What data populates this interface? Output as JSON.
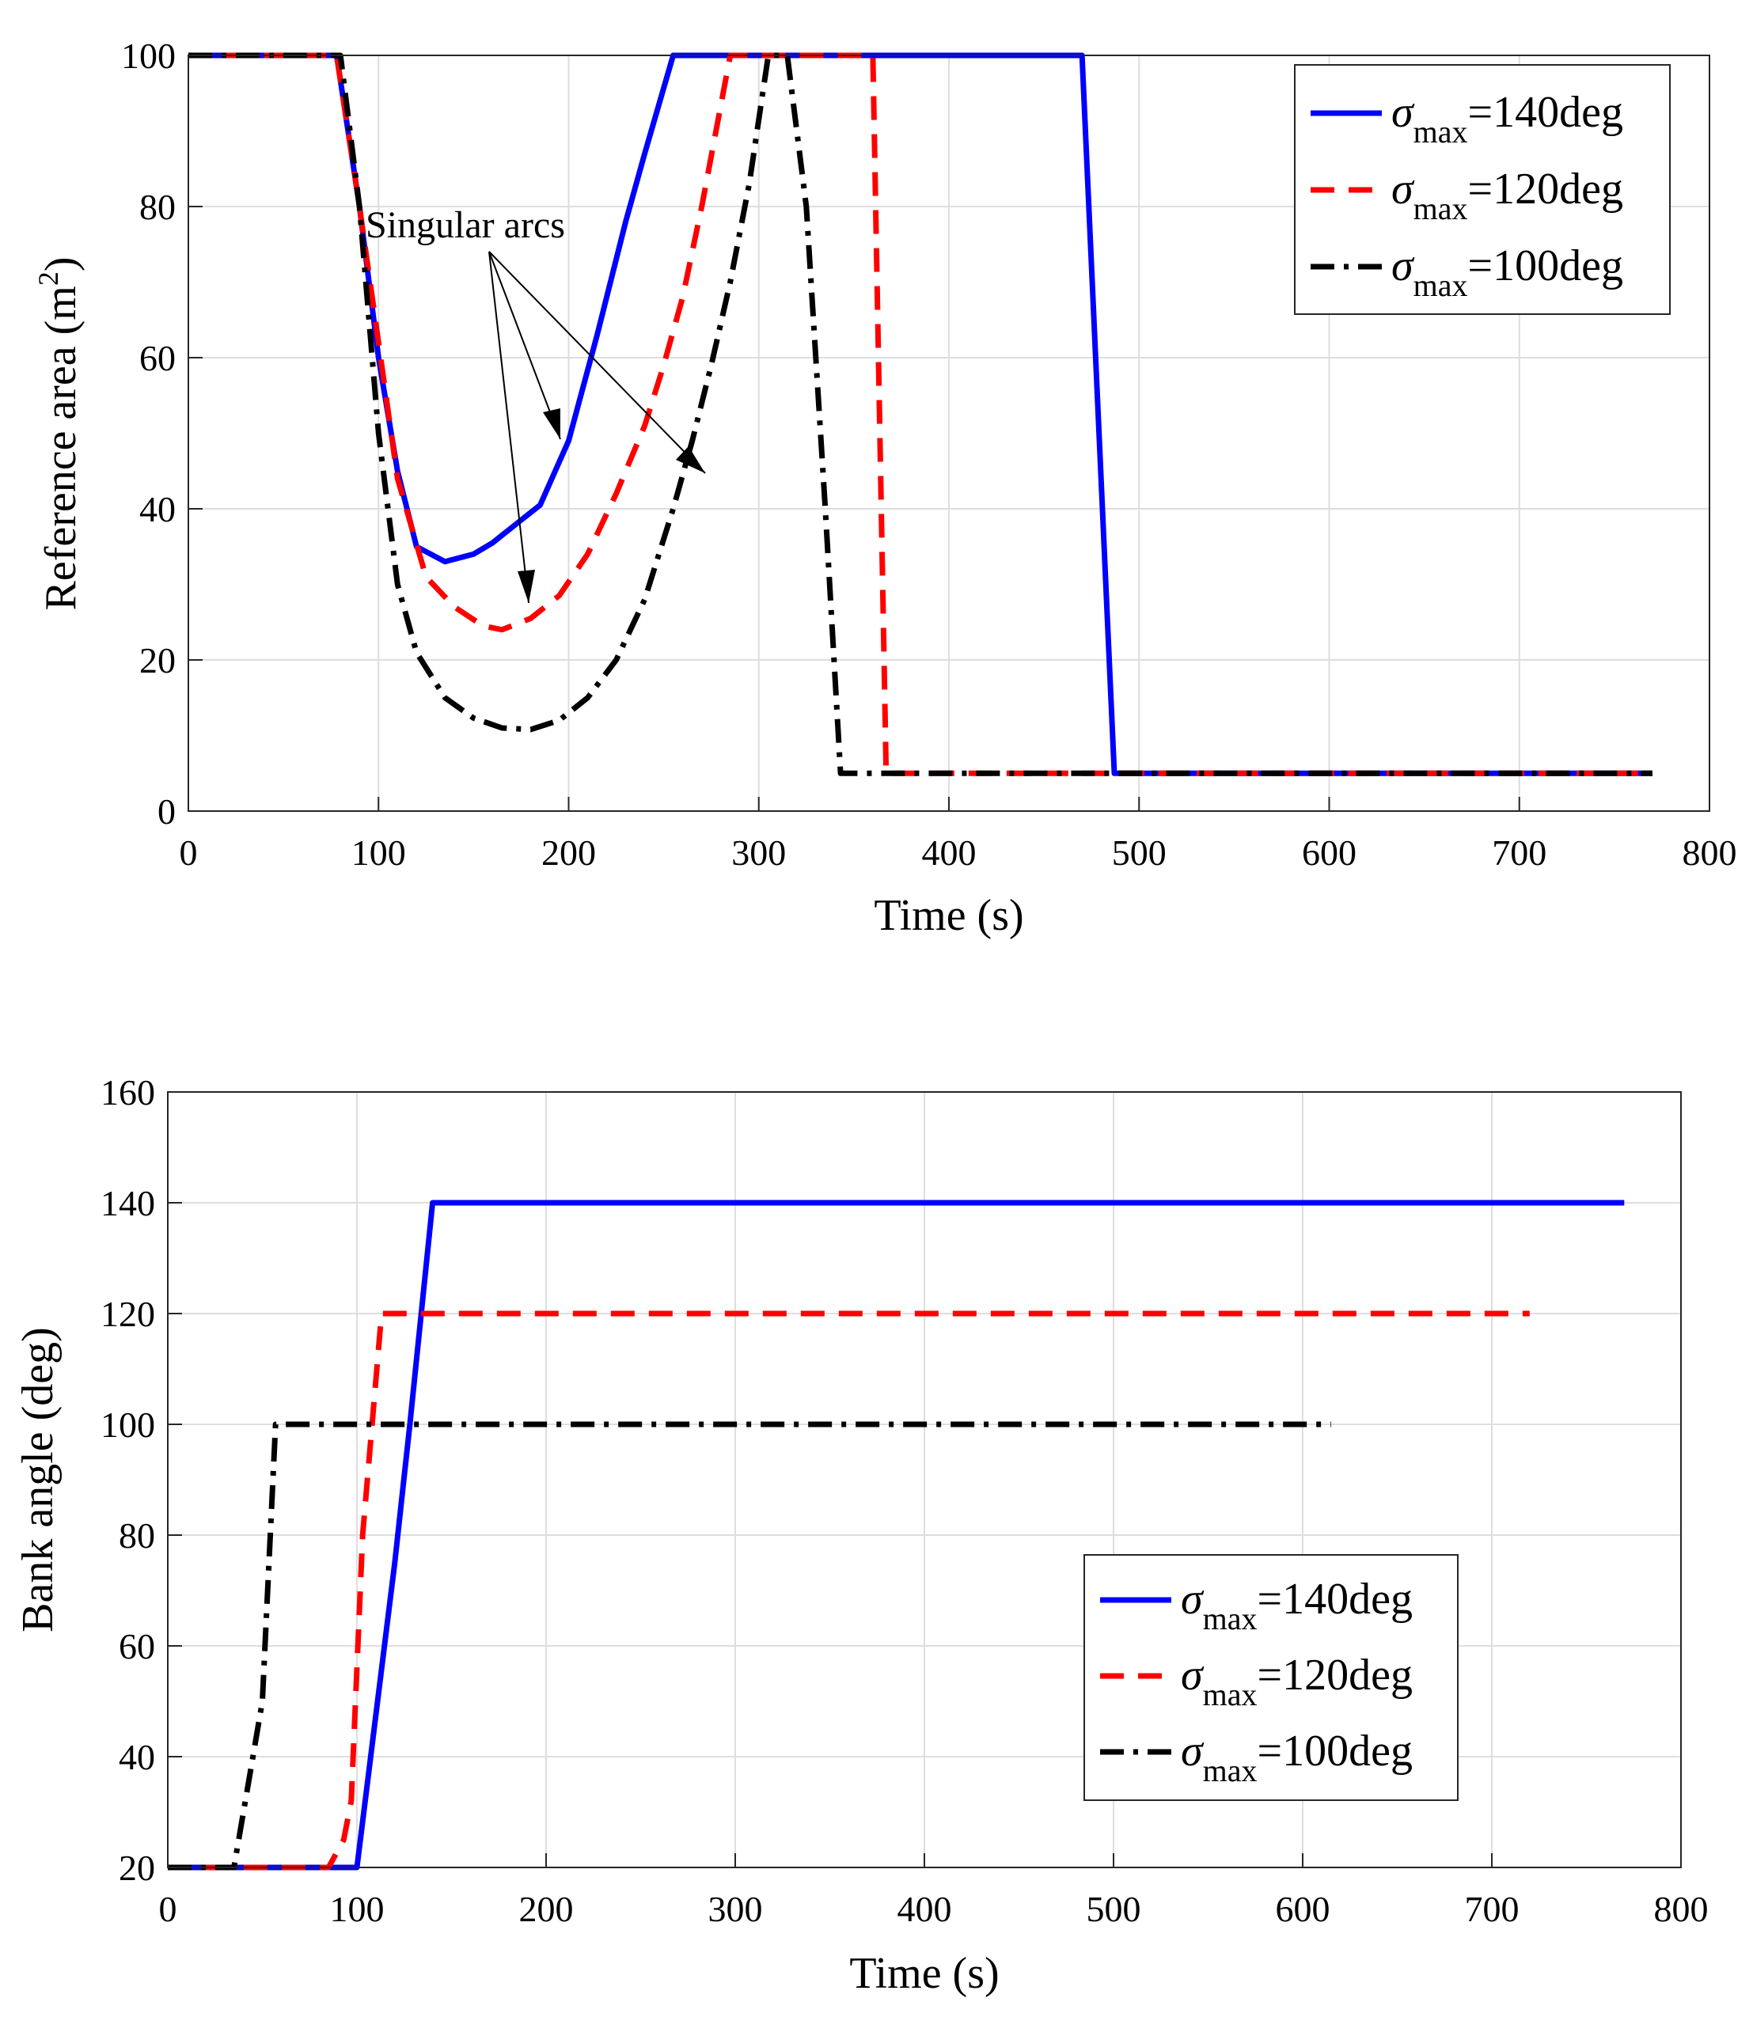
{
  "chart_data": [
    {
      "type": "line",
      "title": "",
      "xlabel": "Time (s)",
      "ylabel_text": "Reference area (m",
      "ylabel_sup": "2",
      "ylabel_close": ")",
      "xlim": [
        0,
        800
      ],
      "ylim": [
        0,
        100
      ],
      "xticks": [
        "0",
        "100",
        "200",
        "300",
        "400",
        "500",
        "600",
        "700",
        "800"
      ],
      "yticks": [
        "0",
        "20",
        "40",
        "60",
        "80",
        "100"
      ],
      "grid": true,
      "legend_position": "top-right",
      "annotation": "Singular arcs",
      "series": [
        {
          "name": "σmax=140deg",
          "legend_sym": "σ",
          "legend_sub": "max",
          "legend_rest": "=140deg",
          "color": "#0000ff",
          "style": "solid",
          "x": [
            0,
            78,
            90,
            100,
            110,
            120,
            135,
            150,
            160,
            175,
            185,
            200,
            215,
            230,
            240,
            255,
            470,
            487,
            770
          ],
          "y": [
            100,
            100,
            80,
            60,
            45,
            35,
            33,
            34,
            35.5,
            38.5,
            40.5,
            49,
            63,
            78,
            87,
            100,
            100,
            5,
            5
          ]
        },
        {
          "name": "σmax=120deg",
          "legend_sym": "σ",
          "legend_sub": "max",
          "legend_rest": "=120deg",
          "color": "#ff0000",
          "style": "dashed",
          "x": [
            0,
            78,
            90,
            100,
            110,
            125,
            140,
            155,
            165,
            180,
            195,
            210,
            225,
            240,
            250,
            260,
            270,
            285,
            360,
            367,
            770
          ],
          "y": [
            100,
            100,
            80,
            62,
            44,
            31,
            27,
            24.5,
            24,
            25.5,
            28.5,
            34,
            42,
            51,
            59,
            68,
            80,
            100,
            100,
            5,
            5
          ]
        },
        {
          "name": "σmax=100deg",
          "legend_sym": "σ",
          "legend_sub": "max",
          "legend_rest": "=100deg",
          "color": "#000000",
          "style": "dashdot",
          "x": [
            0,
            80,
            90,
            100,
            110,
            120,
            135,
            150,
            165,
            180,
            195,
            210,
            225,
            240,
            255,
            265,
            275,
            285,
            295,
            305,
            315,
            325,
            335,
            343,
            770
          ],
          "y": [
            100,
            100,
            80,
            50,
            30,
            21,
            15,
            12.3,
            11,
            10.8,
            12,
            15,
            20,
            28,
            40,
            49,
            59,
            70,
            83,
            100,
            100,
            80,
            40,
            5,
            5
          ]
        }
      ]
    },
    {
      "type": "line",
      "title": "",
      "xlabel": "Time (s)",
      "ylabel": "Bank angle (deg)",
      "xlim": [
        0,
        800
      ],
      "ylim": [
        20,
        160
      ],
      "xticks": [
        "0",
        "100",
        "200",
        "300",
        "400",
        "500",
        "600",
        "700",
        "800"
      ],
      "yticks": [
        "20",
        "40",
        "60",
        "80",
        "100",
        "120",
        "140",
        "160"
      ],
      "grid": true,
      "legend_position": "center-right",
      "series": [
        {
          "name": "σmax=140deg",
          "legend_sym": "σ",
          "legend_sub": "max",
          "legend_rest": "=140deg",
          "color": "#0000ff",
          "style": "solid",
          "x": [
            0,
            100,
            120,
            128,
            140,
            770
          ],
          "y": [
            20,
            20,
            75,
            100,
            140,
            140
          ]
        },
        {
          "name": "σmax=120deg",
          "legend_sym": "σ",
          "legend_sub": "max",
          "legend_rest": "=120deg",
          "color": "#ff0000",
          "style": "dashed",
          "x": [
            0,
            85,
            93,
            97,
            103,
            113,
            720
          ],
          "y": [
            20,
            20,
            25,
            32,
            80,
            120,
            120
          ]
        },
        {
          "name": "σmax=100deg",
          "legend_sym": "σ",
          "legend_sub": "max",
          "legend_rest": "=100deg",
          "color": "#000000",
          "style": "dashdot",
          "x": [
            0,
            35,
            45,
            50,
            57,
            60,
            615
          ],
          "y": [
            20,
            20,
            40,
            50,
            100,
            100,
            100
          ]
        }
      ]
    }
  ]
}
